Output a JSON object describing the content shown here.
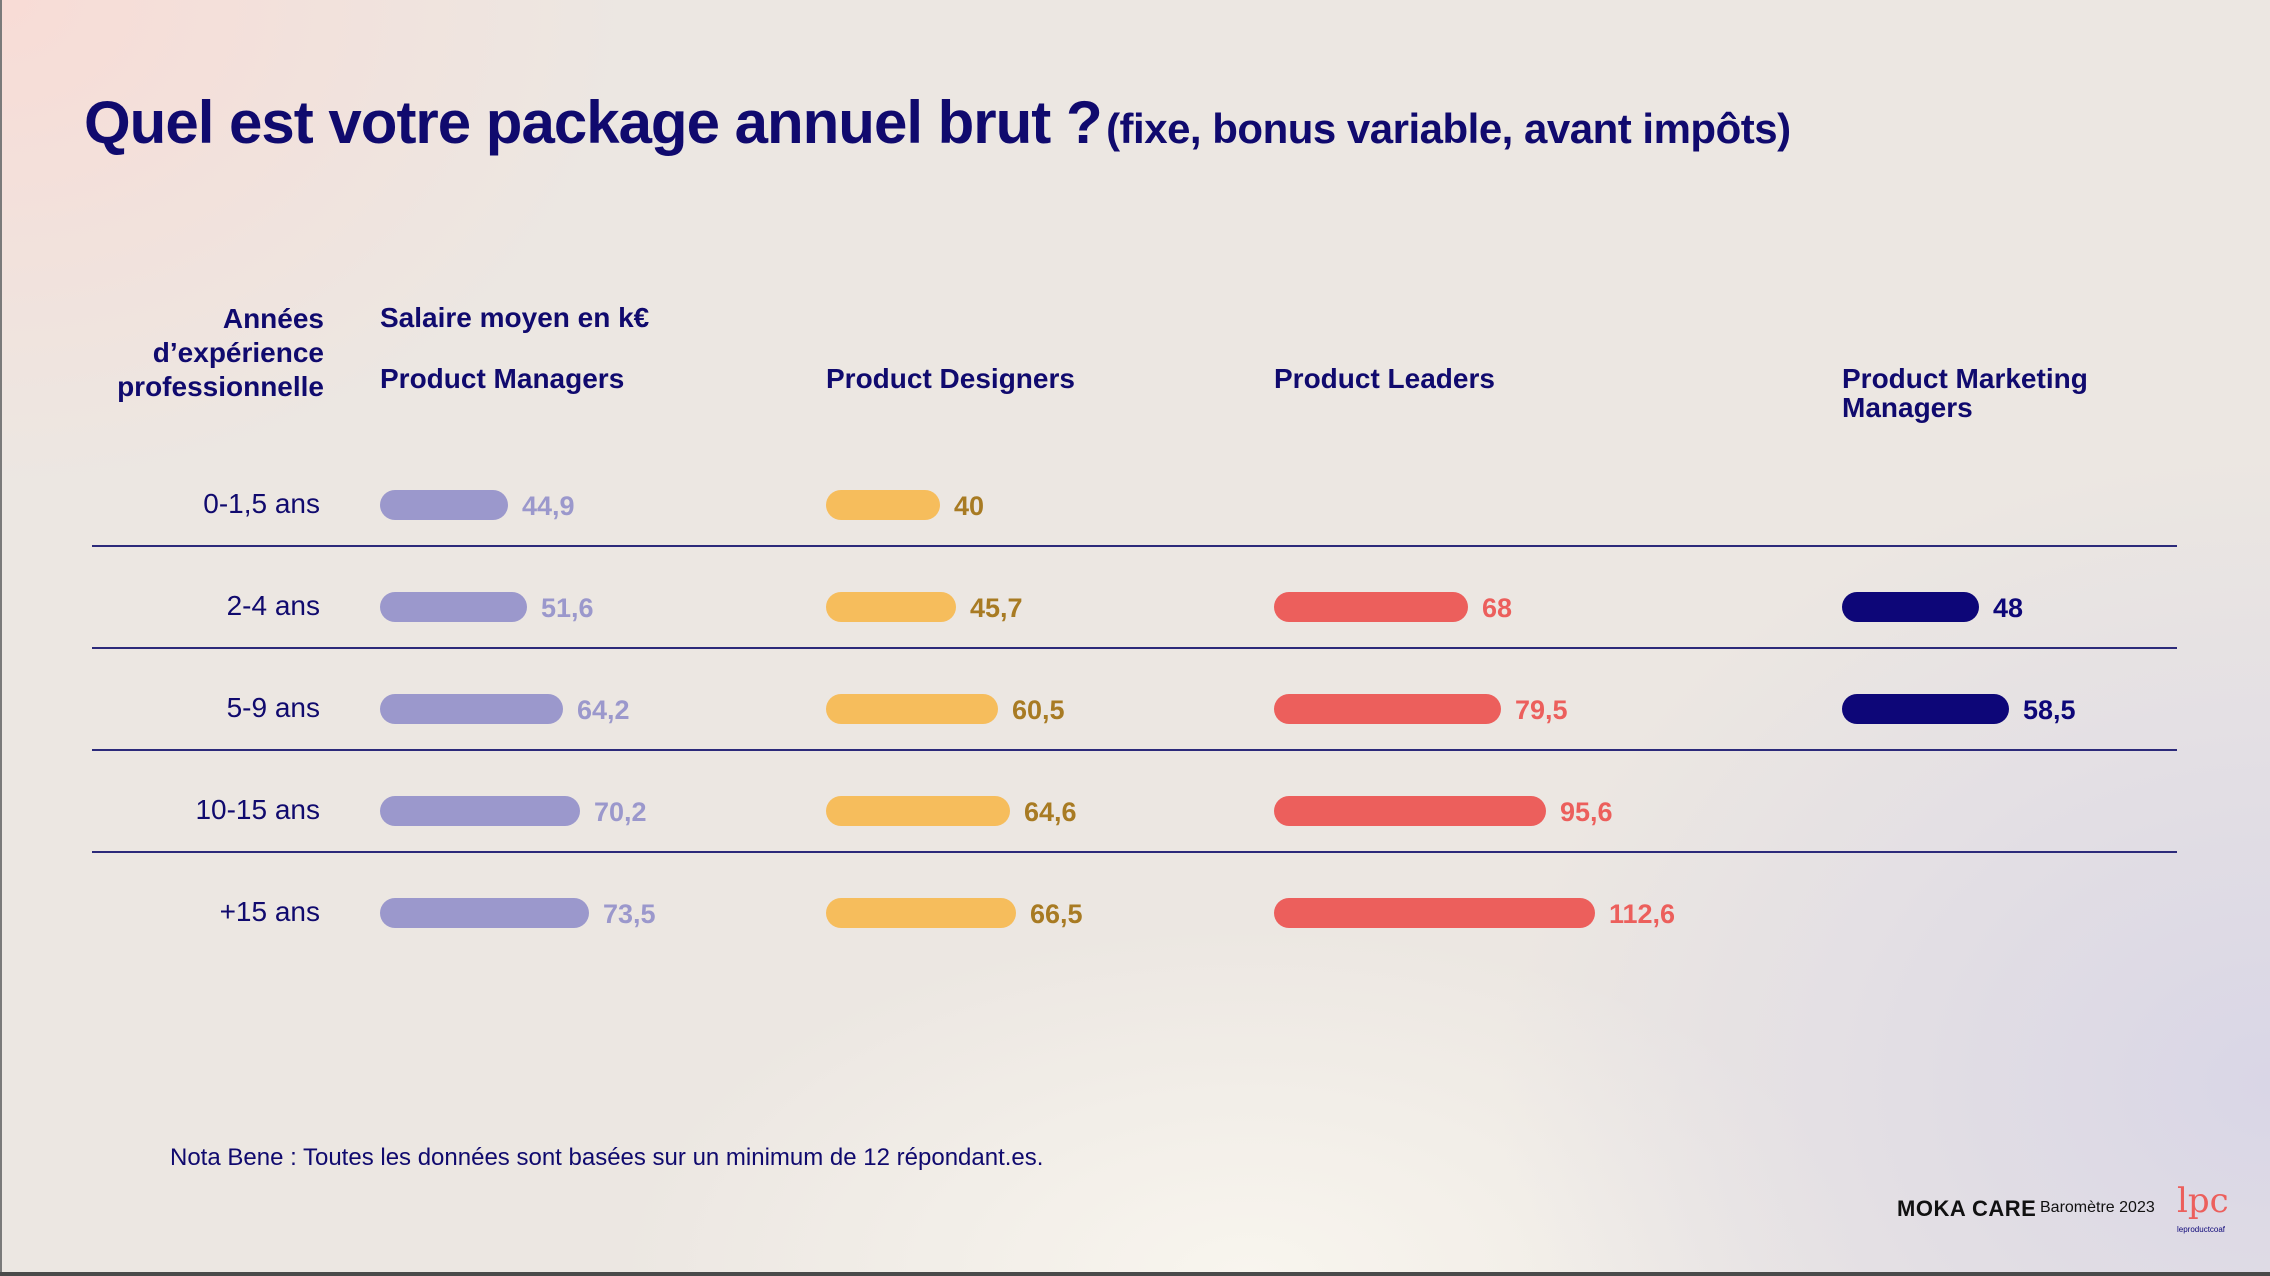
{
  "title_main": "Quel est votre package annuel brut ?",
  "title_sub": "(fixe, bonus variable, avant impôts)",
  "exp_header_lines": [
    "Années",
    "d’expérience",
    "professionnelle"
  ],
  "salary_header": "Salaire moyen en k€",
  "nota": "Nota Bene : Toutes les données sont basées sur un minimum de 12 répondant.es.",
  "footer": {
    "moka": "MOKA CARE",
    "barometer": "Baromètre 2023",
    "logo_text": "lpc",
    "logo_sub": "leproductcoaf"
  },
  "colors": {
    "pm": "#9b98cc",
    "pm_text": "#9b98cc",
    "pd": "#f6bd5c",
    "pd_text": "#a87b23",
    "pl": "#ec5f5c",
    "pl_text": "#ec5f5c",
    "pmm": "#0d0678",
    "pmm_text": "#0d0678"
  },
  "chart_data": {
    "type": "bar",
    "orientation": "horizontal",
    "xlabel": "Salaire moyen en k€",
    "categories": [
      "0-1,5 ans",
      "2-4 ans",
      "5-9 ans",
      "10-15 ans",
      "+15 ans"
    ],
    "series": [
      {
        "name": "Product Managers",
        "values": [
          44.9,
          51.6,
          64.2,
          70.2,
          73.5
        ],
        "labels": [
          "44,9",
          "51,6",
          "64,2",
          "70,2",
          "73,5"
        ],
        "color": "#9b98cc"
      },
      {
        "name": "Product Designers",
        "values": [
          40,
          45.7,
          60.5,
          64.6,
          66.5
        ],
        "labels": [
          "40",
          "45,7",
          "60,5",
          "64,6",
          "66,5"
        ],
        "color": "#f6bd5c"
      },
      {
        "name": "Product Leaders",
        "values": [
          null,
          68,
          79.5,
          95.6,
          112.6
        ],
        "labels": [
          null,
          "68",
          "79,5",
          "95,6",
          "112,6"
        ],
        "color": "#ec5f5c"
      },
      {
        "name": "Product Marketing Managers",
        "values": [
          null,
          48,
          58.5,
          null,
          null
        ],
        "labels": [
          null,
          "48",
          "58,5",
          null,
          null
        ],
        "color": "#0d0678"
      }
    ]
  }
}
